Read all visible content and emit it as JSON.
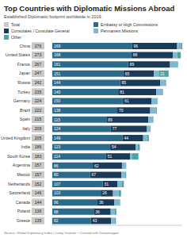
{
  "chart_data": {
    "type": "bar",
    "orientation": "horizontal",
    "stacked": true,
    "data_labels": true,
    "tick_labels": "y",
    "grid": false,
    "title": "Top Countries with Diplomatic Missions Abroad",
    "subtitle": "Established Diplomatic footprint worldwide in 2019.",
    "source": "Source: Global Diplomacy Index / Lowy Institute • Created with Datawrapper",
    "categories": [
      "China",
      "United States",
      "France",
      "Japan",
      "Russia",
      "Turkey",
      "Germany",
      "Brazil",
      "Spain",
      "Italy",
      "United Kingdom",
      "India",
      "South Korea",
      "Argentina",
      "Mexico",
      "Netherlands",
      "Switzerland",
      "Canada",
      "Poland",
      "Greece"
    ],
    "total_label": "Total",
    "total_color": "#c9c9c9",
    "totals": [
      276,
      273,
      267,
      247,
      242,
      235,
      224,
      222,
      215,
      209,
      205,
      186,
      183,
      157,
      157,
      152,
      146,
      144,
      136,
      135
    ],
    "series": [
      {
        "name": "Embassy or High Commissions",
        "color": "#2b6a8a",
        "values": [
          169,
          168,
          161,
          151,
          144,
          140,
          150,
          138,
          115,
          124,
          149,
          123,
          114,
          86,
          80,
          107,
          103,
          96,
          88,
          82
        ]
      },
      {
        "name": "Consulates / Consulate General",
        "color": "#1a3a5a",
        "values": [
          96,
          88,
          89,
          65,
          85,
          81,
          61,
          70,
          89,
          77,
          44,
          54,
          51,
          62,
          67,
          31,
          26,
          36,
          36,
          43
        ]
      },
      {
        "name": "Permanent Missions",
        "color": "#7fb8d0",
        "values": [
          8,
          9,
          16,
          10,
          12,
          13,
          12,
          12,
          11,
          8,
          9,
          5,
          5,
          8,
          8,
          10,
          12,
          10,
          8,
          8
        ]
      },
      {
        "name": "Other",
        "color": "#4fa3a5",
        "values": [
          3,
          8,
          1,
          21,
          1,
          1,
          1,
          2,
          0,
          0,
          3,
          4,
          13,
          1,
          2,
          4,
          5,
          2,
          4,
          2
        ]
      }
    ],
    "xlim": [
      0,
      276
    ],
    "xticks": []
  }
}
